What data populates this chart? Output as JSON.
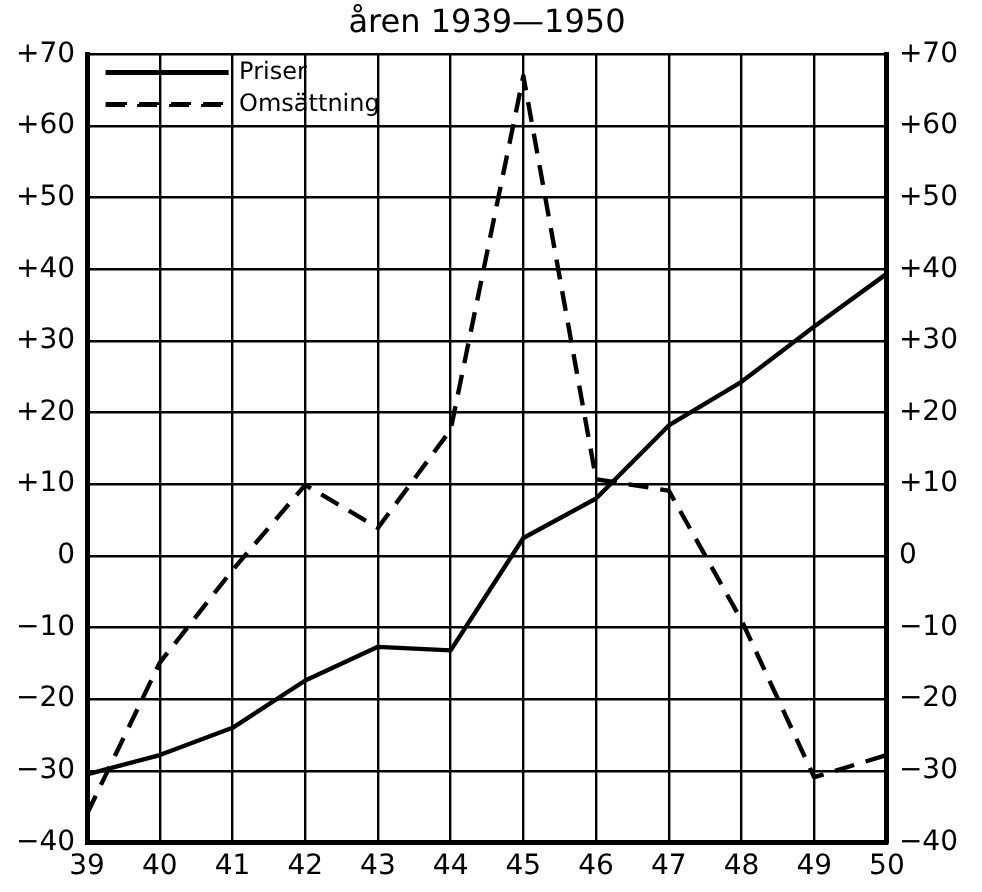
{
  "chart_data": {
    "type": "line",
    "title": "åren 1939—1950",
    "categories": [
      "39",
      "40",
      "41",
      "42",
      "43",
      "44",
      "45",
      "46",
      "47",
      "48",
      "49",
      "50"
    ],
    "series": [
      {
        "name": "Priser",
        "color": "#000000",
        "line_style": "solid",
        "values": [
          -30.5,
          -27.8,
          -24,
          -17.4,
          -12.7,
          -13.2,
          2.5,
          8,
          18.2,
          24.3,
          32,
          39.4
        ]
      },
      {
        "name": "Omsättning",
        "color": "#000000",
        "line_style": "dashed",
        "values": [
          -36,
          -14.9,
          -2,
          9.9,
          3.9,
          17.6,
          67,
          10.7,
          9.1,
          -9,
          -30.9,
          -27.8
        ]
      }
    ],
    "ylim": [
      -40,
      70
    ],
    "yticks": [
      {
        "value": -40,
        "label": "−40"
      },
      {
        "value": -30,
        "label": "−30"
      },
      {
        "value": -20,
        "label": "−20"
      },
      {
        "value": -10,
        "label": "−10"
      },
      0,
      {
        "value": 10,
        "label": "+10"
      },
      {
        "value": 20,
        "label": "+20"
      },
      {
        "value": 30,
        "label": "+30"
      },
      {
        "value": 40,
        "label": "+40"
      },
      {
        "value": 50,
        "label": "+50"
      },
      {
        "value": 60,
        "label": "+60"
      },
      {
        "value": 70,
        "label": "+70"
      }
    ],
    "y2lim": [
      -40,
      70
    ],
    "y2ticks": [
      {
        "value": -40,
        "label": "−40"
      },
      {
        "value": -30,
        "label": "−30"
      },
      {
        "value": -20,
        "label": "−20"
      },
      {
        "value": -10,
        "label": "−10"
      },
      0,
      {
        "value": 10,
        "label": "+10"
      },
      {
        "value": 20,
        "label": "+20"
      },
      {
        "value": 30,
        "label": "+30"
      },
      {
        "value": 40,
        "label": "+40"
      },
      {
        "value": 50,
        "label": "+50"
      },
      {
        "value": 60,
        "label": "+60"
      },
      {
        "value": 70,
        "label": "+70"
      }
    ],
    "grid": true,
    "legend": "top left",
    "marker": "none"
  }
}
